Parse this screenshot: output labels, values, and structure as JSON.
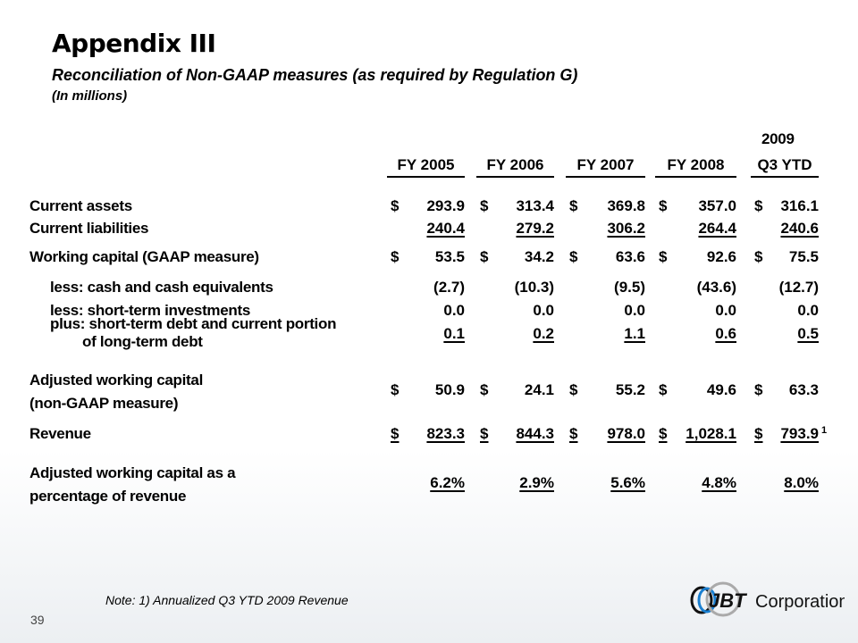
{
  "title": "Appendix III",
  "subtitle": "Reconciliation of Non-GAAP measures (as required by Regulation G)",
  "units": "(In millions)",
  "year_header": "2009",
  "columns": [
    "FY 2005",
    "FY 2006",
    "FY 2007",
    "FY 2008",
    "Q3 YTD"
  ],
  "rows": [
    {
      "label": "Current assets",
      "dollar": true,
      "values": [
        "293.9",
        "313.4",
        "369.8",
        "357.0",
        "316.1"
      ]
    },
    {
      "label": "Current liabilities",
      "dollar": false,
      "underline": true,
      "values": [
        "240.4",
        "279.2",
        "306.2",
        "264.4",
        "240.6"
      ]
    },
    {
      "label": "Working capital (GAAP measure)",
      "dollar": true,
      "values": [
        "53.5",
        "34.2",
        "63.6",
        "92.6",
        "75.5"
      ]
    },
    {
      "label": "less:  cash and cash equivalents",
      "indent": true,
      "values": [
        "(2.7)",
        "(10.3)",
        "(9.5)",
        "(43.6)",
        "(12.7)"
      ]
    },
    {
      "label": "less:  short-term investments",
      "indent": true,
      "values": [
        "0.0",
        "0.0",
        "0.0",
        "0.0",
        "0.0"
      ]
    },
    {
      "label": "plus:  short-term debt and current portion",
      "label2": "of long-term debt",
      "indent": true,
      "underline": true,
      "values": [
        "0.1",
        "0.2",
        "1.1",
        "0.6",
        "0.5"
      ]
    },
    {
      "label": "Adjusted working capital",
      "label2": "(non-GAAP measure)",
      "dollar": true,
      "values": [
        "50.9",
        "24.1",
        "55.2",
        "49.6",
        "63.3"
      ]
    },
    {
      "label": "Revenue",
      "dollar": true,
      "underline_all": true,
      "values": [
        "823.3",
        "844.3",
        "978.0",
        "1,028.1",
        "793.9"
      ]
    },
    {
      "label": "Adjusted working capital as a",
      "label2": "percentage of revenue",
      "underline": true,
      "values": [
        "6.2%",
        "2.9%",
        "5.6%",
        "4.8%",
        "8.0%"
      ]
    }
  ],
  "footnote_marker": "1",
  "note": "Note:    1) Annualized Q3 YTD 2009 Revenue",
  "page_number": "39",
  "logo_text": "JBT",
  "logo_company": "Corporation"
}
